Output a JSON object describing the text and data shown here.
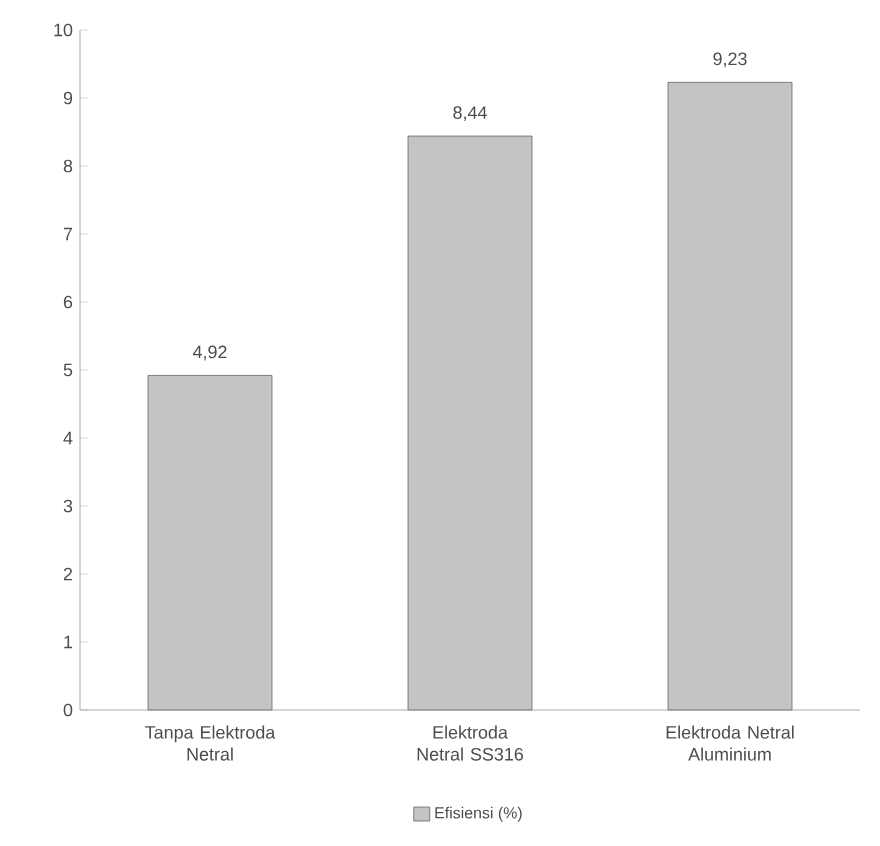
{
  "chart_data": {
    "type": "bar",
    "categories": [
      "Tanpa Elektroda Netral",
      "Elektroda Netral SS316",
      "Elektroda Netral Aluminium"
    ],
    "series": [
      {
        "name": "Efisiensi (%)",
        "color": "#c4c4c4",
        "values": [
          4.92,
          8.44,
          9.23
        ],
        "value_labels": [
          "4,92",
          "8,44",
          "9,23"
        ]
      }
    ],
    "ylim": [
      0,
      10
    ],
    "yticks": [
      0,
      1,
      2,
      3,
      4,
      5,
      6,
      7,
      8,
      9,
      10
    ],
    "grid": false,
    "legend": "bottom"
  }
}
